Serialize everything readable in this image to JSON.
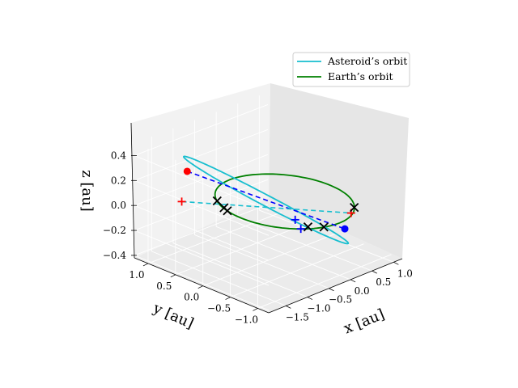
{
  "chart_data": {
    "type": "line3d",
    "title": "",
    "xlabel": "x [au]",
    "ylabel": "y [au]",
    "zlabel": "z [au]",
    "xlim": [
      -1.9,
      1.2
    ],
    "ylim": [
      -1.2,
      1.25
    ],
    "zlim": [
      -0.42,
      0.5
    ],
    "x_ticks": [
      "−1.5",
      "−1.0",
      "−0.5",
      "0.0",
      "0.5",
      "1.0"
    ],
    "y_ticks": [
      "1.0",
      "0.5",
      "0.0",
      "−0.5",
      "−1.0"
    ],
    "z_ticks": [
      "0.4",
      "0.2",
      "0.0",
      "−0.2",
      "−0.4"
    ],
    "grid": true,
    "legend_position": "top-right",
    "series": [
      {
        "name": "Asteroid’s orbit",
        "color": "#17becf",
        "kind": "ellipse",
        "center": [
          -0.41,
          0.02,
          0.06
        ],
        "semi_major": 1.34,
        "semi_minor": 0.98,
        "inclination_deg": 18,
        "perihelion_dir": [
          0.91,
          -0.3,
          -0.29
        ]
      },
      {
        "name": "Earth’s orbit",
        "color": "#008000",
        "kind": "circle",
        "center": [
          0,
          0,
          0
        ],
        "radius": 1.0
      }
    ],
    "lines": [
      {
        "label": "apsidal",
        "color": "#0000ff",
        "style": "dashed",
        "from": [
          -1.73,
          0.42,
          0.4
        ],
        "to": [
          0.91,
          -0.38,
          -0.28
        ]
      },
      {
        "label": "nodal",
        "color": "#17becf",
        "style": "dashed",
        "from": [
          -1.22,
          0.92,
          0.0
        ],
        "to": [
          0.42,
          -0.88,
          0.0
        ]
      }
    ],
    "points": [
      {
        "label": "aphelion",
        "marker": "dot",
        "color": "#ff0000",
        "x": -1.73,
        "y": 0.42,
        "z": 0.4
      },
      {
        "label": "perihelion",
        "marker": "dot",
        "color": "#0000ff",
        "x": 0.91,
        "y": -0.38,
        "z": -0.28
      },
      {
        "label": "node-1",
        "marker": "plus",
        "color": "#ff0000",
        "x": -1.22,
        "y": 0.92,
        "z": 0.0
      },
      {
        "label": "node-2",
        "marker": "plus",
        "color": "#ff0000",
        "x": 0.42,
        "y": -0.88,
        "z": 0.0
      },
      {
        "label": "earth-1",
        "marker": "plus",
        "color": "#0000ff",
        "x": -0.62,
        "y": -0.78,
        "z": 0.0
      },
      {
        "label": "earth-2",
        "marker": "plus",
        "color": "#0000ff",
        "x": -0.42,
        "y": -0.52,
        "z": 0.0
      },
      {
        "label": "x-1",
        "marker": "cross",
        "color": "#000000",
        "x": -0.78,
        "y": 0.62,
        "z": 0.0
      },
      {
        "label": "x-2",
        "marker": "cross",
        "color": "#000000",
        "x": 0.62,
        "y": -0.78,
        "z": 0.0
      },
      {
        "label": "x-3",
        "marker": "cross",
        "color": "#000000",
        "x": -0.3,
        "y": -0.95,
        "z": 0.0
      },
      {
        "label": "x-4",
        "marker": "cross",
        "color": "#000000",
        "x": -0.48,
        "y": -0.8,
        "z": 0.0
      },
      {
        "label": "x-5",
        "marker": "cross",
        "color": "#000000",
        "x": -0.95,
        "y": 0.3,
        "z": 0.0
      },
      {
        "label": "x-6",
        "marker": "cross",
        "color": "#000000",
        "x": -0.9,
        "y": 0.4,
        "z": 0.0
      }
    ]
  }
}
